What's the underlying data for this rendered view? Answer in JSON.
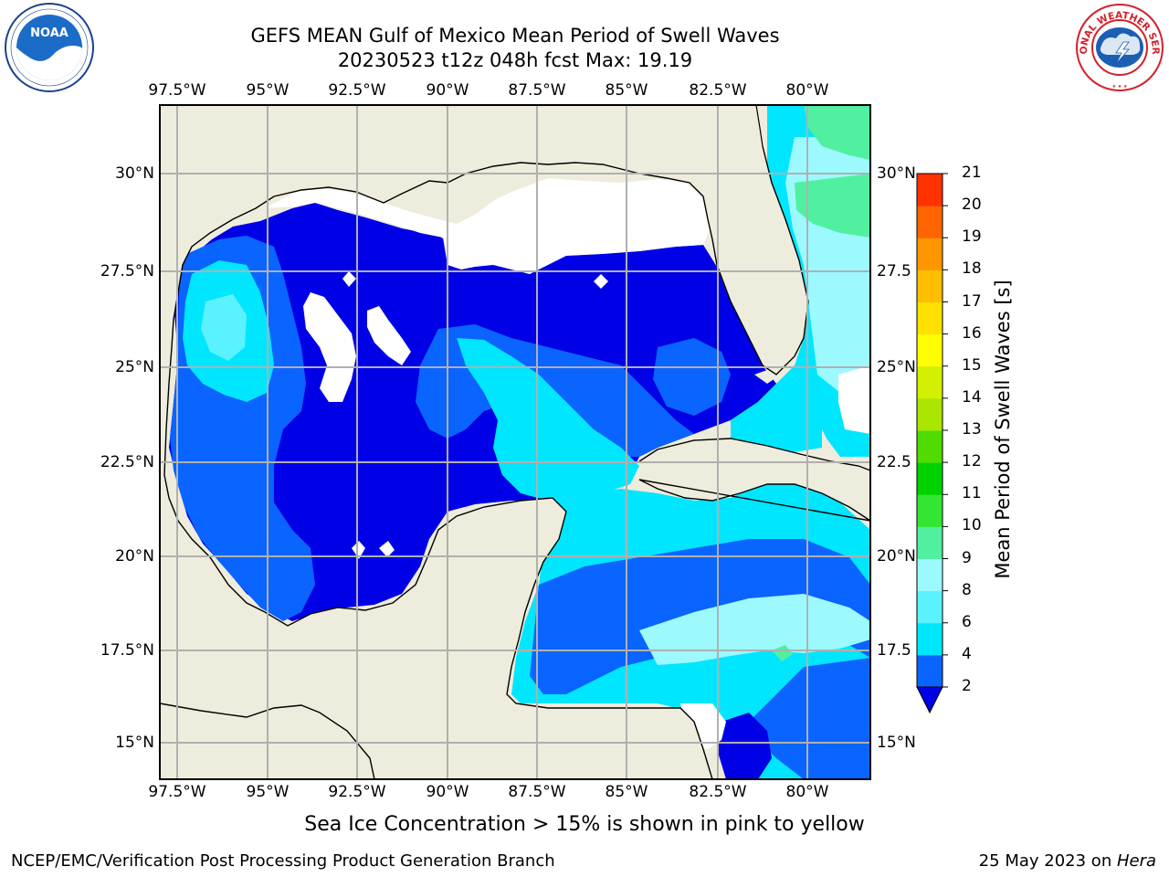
{
  "header": {
    "title": "GEFS MEAN Gulf of Mexico Mean Period of Swell Waves",
    "subtitle": "20230523 t12z 048h fcst   Max: 19.19"
  },
  "logos": {
    "left": {
      "name": "NOAA",
      "ring_text": "NATIONAL OCEANIC AND ATMOSPHERIC ADMINISTRATION · U.S. DEPARTMENT OF COMMERCE"
    },
    "right": {
      "name": "NATIONAL WEATHER SERVICE"
    }
  },
  "map": {
    "lon_labels": [
      "97.5°W",
      "95°W",
      "92.5°W",
      "90°W",
      "87.5°W",
      "85°W",
      "82.5°W",
      "80°W"
    ],
    "lat_labels_left": [
      "30°N",
      "27.5°N",
      "25°N",
      "22.5°N",
      "20°N",
      "17.5°N",
      "15°N"
    ],
    "lat_labels_right": [
      "30°N",
      "27.5",
      "25°N",
      "22.5",
      "20°N",
      "17.5",
      "15°N"
    ],
    "extent": {
      "lon": [
        -98,
        -78.2
      ],
      "lat": [
        14.0,
        31.8
      ]
    }
  },
  "colorbar": {
    "label": "Mean Period of Swell Waves [s]",
    "ticks": [
      "2",
      "4",
      "6",
      "8",
      "9",
      "10",
      "11",
      "12",
      "13",
      "14",
      "15",
      "16",
      "17",
      "18",
      "19",
      "20",
      "21"
    ],
    "colors": [
      "#0a64ff",
      "#00e6ff",
      "#5af2ff",
      "#9cfaff",
      "#50f0a0",
      "#32e632",
      "#00d200",
      "#50dc00",
      "#aae600",
      "#d2f000",
      "#ffff00",
      "#ffe000",
      "#ffbe00",
      "#ff9600",
      "#ff6400",
      "#ff3200"
    ],
    "under_color": "#0000e6"
  },
  "footer": {
    "note": "Sea Ice Concentration > 15% is shown in pink to yellow",
    "credit": "NCEP/EMC/Verification Post Processing Product Generation Branch",
    "date": "25 May 2023 on ",
    "machine": "Hera"
  },
  "colors": {
    "land": "#eeecdc",
    "deep": "#0000e6",
    "blue": "#0a64ff",
    "cyan": "#00e6ff",
    "light_cyan": "#9cfaff",
    "green": "#50f0a0",
    "grid": "#b0b0b0"
  }
}
